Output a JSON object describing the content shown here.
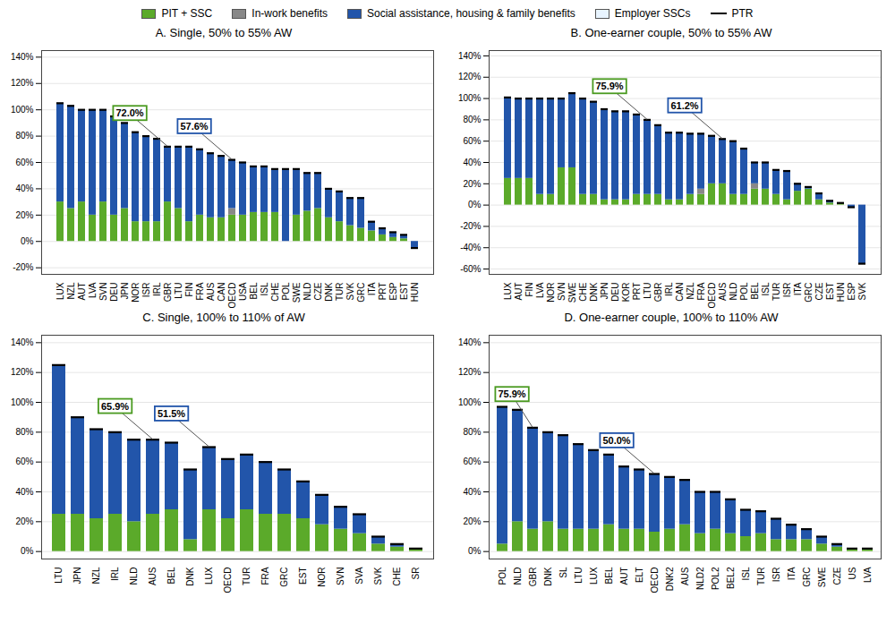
{
  "chart_data": [
    {
      "type": "bar",
      "title": "A. Single, 50% to 55% AW",
      "stacked": true,
      "grid": true,
      "legend": "top",
      "categories": [
        "LUX",
        "NZL",
        "AUT",
        "LVA",
        "SVN",
        "DEU",
        "JPN",
        "NOR",
        "ISR",
        "IRL",
        "GBR",
        "LTU",
        "FIN",
        "FRA",
        "AUS",
        "CAN",
        "OECD",
        "USA",
        "BEL",
        "ISL",
        "CHE",
        "POL",
        "SWE",
        "NLD",
        "CZE",
        "DNK",
        "TUR",
        "SVK",
        "GRC",
        "ITA",
        "PRT",
        "ESP",
        "EST",
        "HUN"
      ],
      "series": [
        {
          "name": "PIT + SSC",
          "type": "bar",
          "color": "#5BAA2A",
          "values": [
            30,
            25,
            30,
            20,
            30,
            20,
            25,
            15,
            15,
            15,
            30,
            25,
            15,
            20,
            18,
            18,
            20,
            20,
            22,
            22,
            22,
            0,
            20,
            23,
            25,
            18,
            15,
            12,
            10,
            8,
            5,
            3,
            2,
            null
          ]
        },
        {
          "name": "In-work benefits",
          "type": "bar",
          "color": "#888888",
          "values": [
            0,
            0,
            0,
            0,
            0,
            0,
            0,
            0,
            0,
            0,
            0,
            0,
            0,
            0,
            0,
            0,
            5,
            0,
            0,
            0,
            0,
            0,
            0,
            0,
            0,
            0,
            0,
            0,
            0,
            0,
            0,
            0,
            0,
            null
          ]
        },
        {
          "name": "Social assistance, housing & family benefits",
          "type": "bar",
          "color": "#2255AA",
          "values": [
            75,
            78,
            70,
            80,
            70,
            75,
            65,
            68,
            65,
            63,
            42,
            47,
            57,
            50,
            49,
            47,
            37,
            40,
            35,
            35,
            33,
            55,
            35,
            29,
            27,
            22,
            23,
            21,
            23,
            7,
            5,
            4,
            3,
            -5
          ]
        },
        {
          "name": "Employer SSCs",
          "type": "bar",
          "color": "#E8F4FF",
          "values": [
            null,
            null,
            null,
            null,
            null,
            null,
            null,
            null,
            null,
            null,
            null,
            null,
            null,
            null,
            null,
            null,
            null,
            null,
            null,
            null,
            null,
            null,
            null,
            null,
            null,
            null,
            null,
            null,
            null,
            null,
            null,
            null,
            null,
            null
          ]
        },
        {
          "name": "PTR",
          "type": "tick",
          "color": "#000000",
          "values": [
            105,
            103,
            100,
            100,
            100,
            95,
            90,
            83,
            80,
            78,
            72,
            72,
            72,
            70,
            67,
            65,
            62,
            60,
            57,
            57,
            55,
            55,
            55,
            52,
            52,
            40,
            38,
            33,
            33,
            15,
            10,
            7,
            5,
            -5
          ]
        }
      ],
      "ylim": [
        -25,
        145
      ],
      "yticks": [
        {
          "value": -20,
          "label": "-20%"
        },
        {
          "value": 0,
          "label": "0%"
        },
        {
          "value": 20,
          "label": "20%"
        },
        {
          "value": 40,
          "label": "40%"
        },
        {
          "value": 60,
          "label": "60%"
        },
        {
          "value": 80,
          "label": "80%"
        },
        {
          "value": 100,
          "label": "100%"
        },
        {
          "value": 120,
          "label": "120%"
        },
        {
          "value": 140,
          "label": "140%"
        }
      ],
      "annotations": [
        {
          "text": "72.0%",
          "x": "GBR",
          "y": 72,
          "color": "#4A9A20"
        },
        {
          "text": "57.6%",
          "x": "OECD",
          "y": 62,
          "color": "#2255AA"
        }
      ]
    },
    {
      "type": "bar",
      "title": "B. One-earner couple, 50% to 55% AW",
      "stacked": true,
      "grid": true,
      "legend": "top",
      "categories": [
        "LUX",
        "AUT",
        "FIN",
        "LVA",
        "NOR",
        "SVN",
        "SWE",
        "CHE",
        "DNK",
        "JPN",
        "DEU",
        "KOR",
        "PRT",
        "LTU",
        "GBR",
        "IRL",
        "CAN",
        "NZL",
        "FRA",
        "OECD",
        "AUS",
        "NLD",
        "POL",
        "BEL",
        "ISL",
        "TUR",
        "ISR",
        "ITA",
        "GRC",
        "CZE",
        "EST",
        "HUN",
        "ESP",
        "SVK"
      ],
      "series": [
        {
          "name": "PIT + SSC",
          "type": "bar",
          "color": "#5BAA2A",
          "values": [
            25,
            25,
            25,
            10,
            10,
            35,
            35,
            10,
            10,
            5,
            5,
            5,
            10,
            10,
            10,
            5,
            5,
            10,
            10,
            20,
            20,
            10,
            10,
            15,
            15,
            10,
            5,
            13,
            15,
            5,
            2,
            2,
            null,
            null
          ]
        },
        {
          "name": "In-work benefits",
          "type": "bar",
          "color": "#888888",
          "values": [
            0,
            0,
            0,
            0,
            0,
            0,
            0,
            0,
            0,
            0,
            0,
            0,
            0,
            0,
            0,
            0,
            0,
            0,
            5,
            0,
            0,
            0,
            0,
            5,
            0,
            0,
            0,
            0,
            0,
            0,
            0,
            0,
            null,
            null
          ]
        },
        {
          "name": "Social assistance, housing & family benefits",
          "type": "bar",
          "color": "#2255AA",
          "values": [
            76,
            75,
            75,
            90,
            90,
            65,
            70,
            90,
            87,
            85,
            83,
            83,
            75,
            70,
            65,
            63,
            63,
            57,
            52,
            45,
            42,
            50,
            43,
            20,
            25,
            23,
            27,
            7,
            2,
            6,
            2,
            0,
            -2,
            -55
          ]
        },
        {
          "name": "Employer SSCs",
          "type": "bar",
          "color": "#E8F4FF",
          "values": [
            null,
            null,
            null,
            null,
            null,
            null,
            null,
            null,
            null,
            null,
            null,
            null,
            null,
            null,
            null,
            null,
            null,
            null,
            null,
            null,
            null,
            null,
            null,
            null,
            null,
            null,
            null,
            null,
            null,
            null,
            null,
            null,
            null,
            null
          ]
        },
        {
          "name": "PTR",
          "type": "tick",
          "color": "#000000",
          "values": [
            101,
            100,
            100,
            100,
            100,
            100,
            105,
            100,
            97,
            90,
            88,
            88,
            85,
            80,
            75,
            68,
            68,
            67,
            67,
            65,
            62,
            60,
            53,
            40,
            40,
            33,
            32,
            20,
            17,
            11,
            4,
            2,
            -2,
            -55
          ]
        }
      ],
      "ylim": [
        -65,
        145
      ],
      "yticks": [
        {
          "value": -60,
          "label": "-60%"
        },
        {
          "value": -40,
          "label": "-40%"
        },
        {
          "value": -20,
          "label": "-20%"
        },
        {
          "value": 0,
          "label": "0%"
        },
        {
          "value": 20,
          "label": "20%"
        },
        {
          "value": 40,
          "label": "40%"
        },
        {
          "value": 60,
          "label": "60%"
        },
        {
          "value": 80,
          "label": "80%"
        },
        {
          "value": 100,
          "label": "100%"
        },
        {
          "value": 120,
          "label": "120%"
        },
        {
          "value": 140,
          "label": "140%"
        }
      ],
      "annotations": [
        {
          "text": "75.9%",
          "x": "LTU",
          "y": 80,
          "color": "#4A9A20"
        },
        {
          "text": "61.2%",
          "x": "AUS",
          "y": 62,
          "color": "#2255AA"
        }
      ]
    },
    {
      "type": "bar",
      "title": "C. Single, 100% to 110% of AW",
      "stacked": true,
      "grid": true,
      "legend": "top",
      "categories": [
        "LTU",
        "JPN",
        "NZL",
        "IRL",
        "NLD",
        "AUS",
        "BEL",
        "DNK",
        "LUX",
        "OECD",
        "TUR",
        "FRA",
        "GRC",
        "EST",
        "NOR",
        "SVN",
        "SVA",
        "SVK",
        "CHE",
        "SR"
      ],
      "series": [
        {
          "name": "PIT + SSC",
          "type": "bar",
          "color": "#5BAA2A",
          "values": [
            25,
            25,
            22,
            25,
            20,
            25,
            28,
            8,
            28,
            22,
            28,
            25,
            25,
            22,
            18,
            15,
            12,
            5,
            3,
            2
          ]
        },
        {
          "name": "In-work benefits",
          "type": "bar",
          "color": "#888888",
          "values": [
            0,
            0,
            0,
            0,
            0,
            0,
            0,
            0,
            0,
            0,
            0,
            0,
            0,
            0,
            0,
            0,
            0,
            0,
            0,
            0
          ]
        },
        {
          "name": "Social assistance, housing & family benefits",
          "type": "bar",
          "color": "#2255AA",
          "values": [
            100,
            65,
            60,
            55,
            55,
            50,
            45,
            47,
            42,
            40,
            37,
            35,
            30,
            25,
            20,
            15,
            13,
            5,
            2,
            0
          ]
        },
        {
          "name": "Employer SSCs",
          "type": "bar",
          "color": "#E8F4FF",
          "values": [
            null,
            null,
            null,
            null,
            null,
            null,
            null,
            null,
            null,
            null,
            null,
            null,
            null,
            null,
            null,
            null,
            null,
            null,
            null,
            null
          ]
        },
        {
          "name": "PTR",
          "type": "tick",
          "color": "#000000",
          "values": [
            125,
            90,
            82,
            80,
            75,
            75,
            73,
            55,
            70,
            62,
            65,
            60,
            55,
            47,
            38,
            30,
            25,
            10,
            5,
            2
          ]
        }
      ],
      "ylim": [
        -5,
        145
      ],
      "yticks": [
        {
          "value": 0,
          "label": "0%"
        },
        {
          "value": 20,
          "label": "20%"
        },
        {
          "value": 40,
          "label": "40%"
        },
        {
          "value": 60,
          "label": "60%"
        },
        {
          "value": 80,
          "label": "80%"
        },
        {
          "value": 100,
          "label": "100%"
        },
        {
          "value": 120,
          "label": "120%"
        },
        {
          "value": 140,
          "label": "140%"
        }
      ],
      "annotations": [
        {
          "text": "65.9%",
          "x": "AUS",
          "y": 75,
          "color": "#4A9A20"
        },
        {
          "text": "51.5%",
          "x": "LUX",
          "y": 70,
          "color": "#2255AA"
        }
      ]
    },
    {
      "type": "bar",
      "title": "D. One-earner couple, 100% to 110% AW",
      "stacked": true,
      "grid": true,
      "legend": "top",
      "categories": [
        "POL",
        "NLD",
        "GBR",
        "DNK",
        "SL",
        "LTU",
        "LUX",
        "BEL",
        "AUT",
        "ELT",
        "OECD",
        "DNK2",
        "AUS",
        "NLD2",
        "POL2",
        "BEL2",
        "ISL",
        "TUR",
        "ISR",
        "ITA",
        "GRC",
        "SWE",
        "CZE",
        "US",
        "LVA"
      ],
      "series": [
        {
          "name": "PIT + SSC",
          "type": "bar",
          "color": "#5BAA2A",
          "values": [
            5,
            20,
            15,
            20,
            15,
            15,
            15,
            18,
            15,
            15,
            13,
            15,
            18,
            12,
            15,
            12,
            10,
            12,
            8,
            8,
            8,
            5,
            3,
            2,
            1
          ]
        },
        {
          "name": "In-work benefits",
          "type": "bar",
          "color": "#888888",
          "values": [
            0,
            0,
            0,
            0,
            0,
            0,
            0,
            0,
            0,
            0,
            0,
            0,
            0,
            0,
            0,
            0,
            0,
            0,
            0,
            0,
            0,
            0,
            0,
            0,
            0
          ]
        },
        {
          "name": "Social assistance, housing & family benefits",
          "type": "bar",
          "color": "#2255AA",
          "values": [
            92,
            75,
            68,
            60,
            63,
            57,
            53,
            47,
            42,
            40,
            39,
            35,
            30,
            28,
            25,
            23,
            18,
            15,
            14,
            10,
            7,
            5,
            2,
            0,
            1
          ]
        },
        {
          "name": "Employer SSCs",
          "type": "bar",
          "color": "#E8F4FF",
          "values": [
            null,
            null,
            null,
            null,
            null,
            null,
            null,
            null,
            null,
            null,
            null,
            null,
            null,
            null,
            null,
            null,
            null,
            null,
            null,
            null,
            null,
            null,
            null,
            null,
            null
          ]
        },
        {
          "name": "PTR",
          "type": "tick",
          "color": "#000000",
          "values": [
            97,
            95,
            83,
            80,
            78,
            72,
            68,
            65,
            57,
            55,
            52,
            50,
            48,
            40,
            40,
            35,
            28,
            27,
            22,
            18,
            15,
            10,
            5,
            2,
            2
          ]
        }
      ],
      "ylim": [
        -5,
        145
      ],
      "yticks": [
        {
          "value": 0,
          "label": "0%"
        },
        {
          "value": 20,
          "label": "20%"
        },
        {
          "value": 40,
          "label": "40%"
        },
        {
          "value": 60,
          "label": "60%"
        },
        {
          "value": 80,
          "label": "80%"
        },
        {
          "value": 100,
          "label": "100%"
        },
        {
          "value": 120,
          "label": "120%"
        },
        {
          "value": 140,
          "label": "140%"
        }
      ],
      "annotations": [
        {
          "text": "75.9%",
          "x": "GBR",
          "y": 83,
          "color": "#4A9A20"
        },
        {
          "text": "50.0%",
          "x": "OECD",
          "y": 52,
          "color": "#2255AA"
        }
      ]
    }
  ]
}
